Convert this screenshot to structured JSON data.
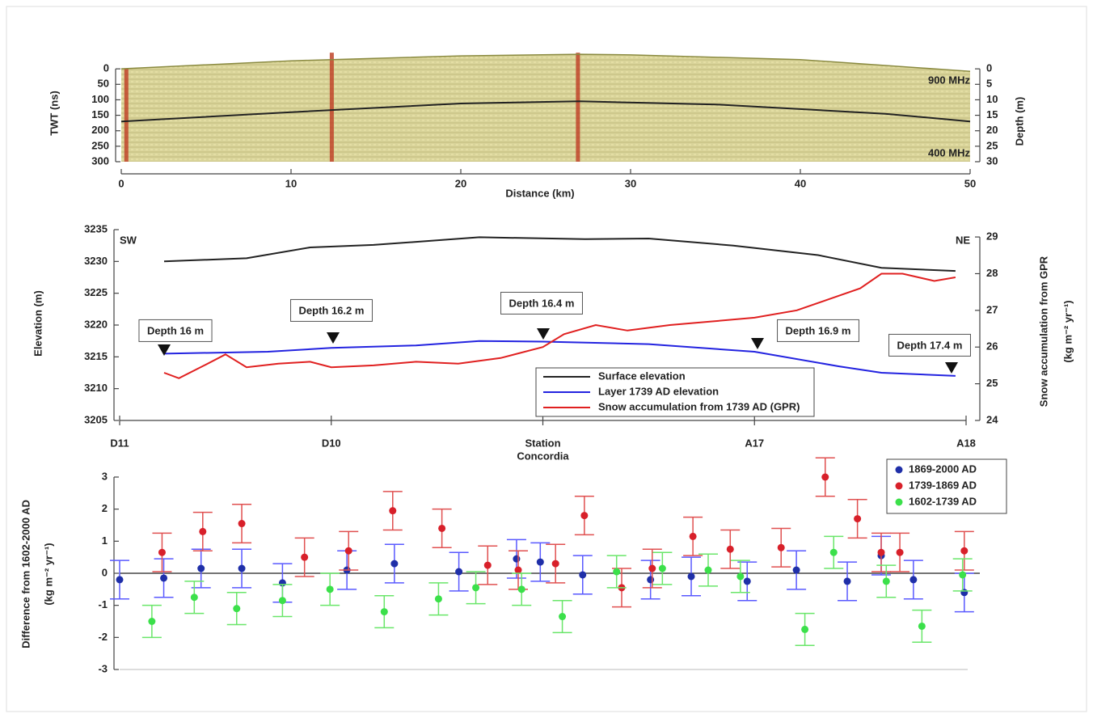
{
  "chart_data": [
    {
      "type": "radargram",
      "ylabel": "TWT (ns)",
      "y2label": "Depth (m)",
      "xlabel": "Distance (km)",
      "annotations": [
        "900 MHz",
        "400 MHz"
      ],
      "xlim": [
        0,
        50
      ],
      "xticks": [
        0,
        10,
        20,
        30,
        40,
        50
      ],
      "ylim": [
        -50,
        300
      ],
      "yticks": [
        0,
        50,
        100,
        150,
        200,
        250,
        300
      ],
      "y2lim": [
        -5,
        30
      ],
      "y2ticks": [
        0,
        5,
        10,
        15,
        20,
        25,
        30
      ],
      "fill_color": "#d9d49a",
      "series": [
        {
          "color": "#8a8a40",
          "x": [
            0,
            10,
            20,
            27,
            30,
            40,
            50
          ],
          "values": [
            0,
            -26,
            -42,
            -47,
            -45,
            -30,
            8
          ]
        },
        {
          "color": "#222222",
          "x": [
            0,
            10,
            20,
            27,
            35,
            45,
            50
          ],
          "values": [
            170,
            140,
            112,
            105,
            115,
            145,
            170
          ]
        }
      ],
      "markers": {
        "color": "#c0442a",
        "x": [
          0.3,
          12.4,
          26.9
        ]
      }
    },
    {
      "type": "line",
      "ylabel": "Elevation (m)",
      "y2label": [
        "Snow accumulation from GPR",
        "(kg m⁻² yr⁻¹)"
      ],
      "corner_labels": [
        "SW",
        "NE"
      ],
      "xlim": [
        0,
        4
      ],
      "xticks": [
        {
          "value": 0,
          "label": "D11"
        },
        {
          "value": 1,
          "label": "D10"
        },
        {
          "value": 2,
          "label": [
            "Station",
            "Concordia"
          ]
        },
        {
          "value": 3,
          "label": "A17"
        },
        {
          "value": 4,
          "label": "A18"
        }
      ],
      "ylim": [
        3205,
        3235
      ],
      "yticks": [
        3205,
        3210,
        3215,
        3220,
        3225,
        3230,
        3235
      ],
      "y2lim": [
        24,
        29.2
      ],
      "y2ticks": [
        24,
        25,
        26,
        27,
        28,
        29
      ],
      "annotations": [
        "Depth 16 m",
        "Depth 16.2 m",
        "Depth 16.4 m",
        "Depth 16.9 m",
        "Depth 17.4 m"
      ],
      "series": [
        {
          "name": "Surface elevation",
          "color": "#222222",
          "x": [
            0.21,
            0.6,
            0.9,
            1.2,
            1.7,
            2.2,
            2.5,
            2.9,
            3.3,
            3.6,
            3.95
          ],
          "values": [
            3230,
            3230.5,
            3232.2,
            3232.6,
            3233.8,
            3233.5,
            3233.6,
            3232.5,
            3231,
            3229,
            3228.5
          ]
        },
        {
          "name": "Layer 1739 AD elevation",
          "color": "#2323e0",
          "x": [
            0.21,
            0.7,
            1.0,
            1.4,
            1.7,
            2.0,
            2.5,
            3.0,
            3.4,
            3.6,
            3.95
          ],
          "values": [
            3215.5,
            3215.8,
            3216.4,
            3216.8,
            3217.5,
            3217.4,
            3217,
            3215.8,
            3213.5,
            3212.5,
            3212
          ]
        },
        {
          "name": "Snow accumulation from 1739 AD (GPR)",
          "color": "#e02020",
          "axis": "y2",
          "x": [
            0.21,
            0.28,
            0.4,
            0.5,
            0.6,
            0.75,
            0.9,
            1.0,
            1.2,
            1.4,
            1.6,
            1.8,
            2.0,
            2.1,
            2.25,
            2.4,
            2.6,
            2.8,
            3.0,
            3.2,
            3.35,
            3.5,
            3.6,
            3.7,
            3.85,
            3.95
          ],
          "values": [
            25.3,
            25.15,
            25.5,
            25.8,
            25.45,
            25.55,
            25.6,
            25.45,
            25.5,
            25.6,
            25.55,
            25.7,
            26.0,
            26.35,
            26.6,
            26.45,
            26.6,
            26.7,
            26.8,
            27.0,
            27.3,
            27.6,
            28.0,
            28.0,
            27.8,
            27.9
          ]
        }
      ]
    },
    {
      "type": "errorbar",
      "ylabel": [
        "Difference from 1602-2000 AD",
        "(kg m⁻² yr⁻¹)"
      ],
      "xlim": [
        0,
        50
      ],
      "ylim": [
        -3,
        3
      ],
      "yticks": [
        -3,
        -2,
        -1,
        0,
        1,
        2,
        3
      ],
      "series": [
        {
          "name": "1869-2000 AD",
          "color": "#1f2fa8",
          "bar_color": "#5a5aff",
          "x": [
            0,
            2.6,
            4.8,
            7.2,
            9.6,
            13.4,
            16.2,
            20,
            23.4,
            24.8,
            27.3,
            31.3,
            33.7,
            37,
            39.9,
            42.9,
            44.9,
            46.8,
            49.8
          ],
          "values": [
            -0.2,
            -0.15,
            0.15,
            0.15,
            -0.3,
            0.1,
            0.3,
            0.05,
            0.45,
            0.35,
            -0.05,
            -0.2,
            -0.1,
            -0.25,
            0.1,
            -0.25,
            0.55,
            -0.2,
            -0.6
          ],
          "errors": [
            0.6,
            0.6,
            0.6,
            0.6,
            0.6,
            0.6,
            0.6,
            0.6,
            0.6,
            0.6,
            0.6,
            0.6,
            0.6,
            0.6,
            0.6,
            0.6,
            0.6,
            0.6,
            0.6
          ]
        },
        {
          "name": "1739-1869 AD",
          "color": "#d8202a",
          "bar_color": "#e05050",
          "x": [
            2.5,
            4.9,
            7.2,
            10.9,
            13.5,
            16.1,
            19,
            21.7,
            23.5,
            25.7,
            27.4,
            29.6,
            31.4,
            33.8,
            36,
            39,
            41.6,
            43.5,
            44.9,
            46,
            49.8
          ],
          "values": [
            0.65,
            1.3,
            1.55,
            0.5,
            0.7,
            1.95,
            1.4,
            0.25,
            0.1,
            0.3,
            1.8,
            -0.45,
            0.15,
            1.15,
            0.75,
            0.8,
            3.0,
            1.7,
            0.65,
            0.65,
            0.7
          ],
          "errors": [
            0.6,
            0.6,
            0.6,
            0.6,
            0.6,
            0.6,
            0.6,
            0.6,
            0.6,
            0.6,
            0.6,
            0.6,
            0.6,
            0.6,
            0.6,
            0.6,
            0.6,
            0.6,
            0.6,
            0.6,
            0.6
          ]
        },
        {
          "name": "1602-1739 AD",
          "color": "#3be04a",
          "bar_color": "#6ae66a",
          "x": [
            1.9,
            4.4,
            6.9,
            9.6,
            12.4,
            15.6,
            18.8,
            21,
            23.7,
            26.1,
            29.3,
            32,
            34.7,
            36.6,
            40.4,
            42.1,
            45.2,
            47.3,
            49.7
          ],
          "values": [
            -1.5,
            -0.75,
            -1.1,
            -0.85,
            -0.5,
            -1.2,
            -0.8,
            -0.45,
            -0.5,
            -1.35,
            0.05,
            0.15,
            0.1,
            -0.1,
            -1.75,
            0.65,
            -0.25,
            -1.65,
            -0.05
          ],
          "errors": [
            0.5,
            0.5,
            0.5,
            0.5,
            0.5,
            0.5,
            0.5,
            0.5,
            0.5,
            0.5,
            0.5,
            0.5,
            0.5,
            0.5,
            0.5,
            0.5,
            0.5,
            0.5,
            0.5
          ]
        }
      ]
    }
  ]
}
